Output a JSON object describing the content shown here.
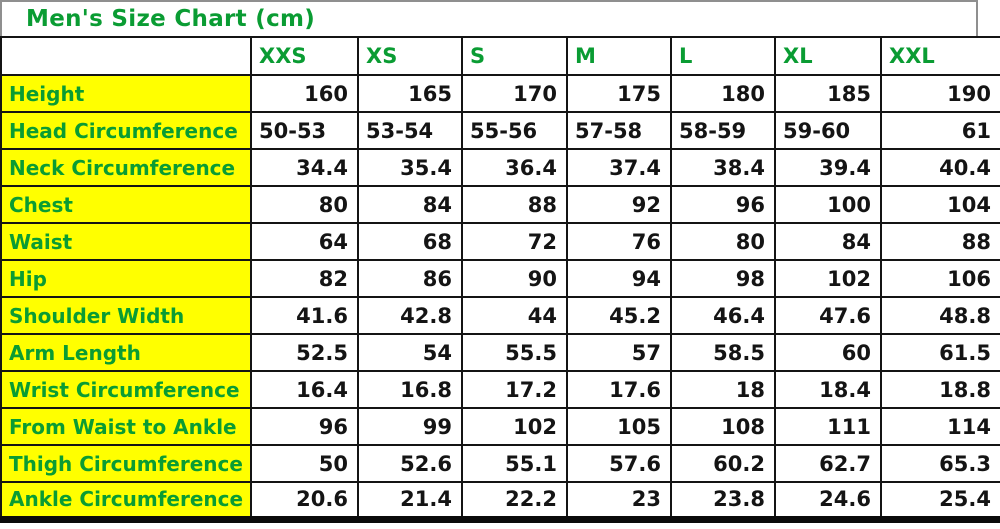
{
  "title": "Men's Size Chart (cm)",
  "colors": {
    "label_green": "#0a9c33",
    "row_yellow": "#ffff00",
    "grid_border": "#141414",
    "title_border_gray": "#8f8f8f",
    "value_text": "#141414"
  },
  "chart_data": {
    "type": "table",
    "title": "Men's Size Chart (cm)",
    "columns": [
      "",
      "XXS",
      "XS",
      "S",
      "M",
      "L",
      "XL",
      "XXL"
    ],
    "rows": [
      {
        "label": "Height",
        "values": [
          "160",
          "165",
          "170",
          "175",
          "180",
          "185",
          "190"
        ]
      },
      {
        "label": "Head Circumference",
        "values": [
          "50-53",
          "53-54",
          "55-56",
          "57-58",
          "58-59",
          "59-60",
          "61"
        ]
      },
      {
        "label": "Neck Circumference",
        "values": [
          "34.4",
          "35.4",
          "36.4",
          "37.4",
          "38.4",
          "39.4",
          "40.4"
        ]
      },
      {
        "label": "Chest",
        "values": [
          "80",
          "84",
          "88",
          "92",
          "96",
          "100",
          "104"
        ]
      },
      {
        "label": "Waist",
        "values": [
          "64",
          "68",
          "72",
          "76",
          "80",
          "84",
          "88"
        ]
      },
      {
        "label": "Hip",
        "values": [
          "82",
          "86",
          "90",
          "94",
          "98",
          "102",
          "106"
        ]
      },
      {
        "label": "Shoulder Width",
        "values": [
          "41.6",
          "42.8",
          "44",
          "45.2",
          "46.4",
          "47.6",
          "48.8"
        ]
      },
      {
        "label": "Arm Length",
        "values": [
          "52.5",
          "54",
          "55.5",
          "57",
          "58.5",
          "60",
          "61.5"
        ]
      },
      {
        "label": "Wrist Circumference",
        "values": [
          "16.4",
          "16.8",
          "17.2",
          "17.6",
          "18",
          "18.4",
          "18.8"
        ]
      },
      {
        "label": "From Waist to Ankle",
        "values": [
          "96",
          "99",
          "102",
          "105",
          "108",
          "111",
          "114"
        ]
      },
      {
        "label": "Thigh Circumference",
        "values": [
          "50",
          "52.6",
          "55.1",
          "57.6",
          "60.2",
          "62.7",
          "65.3"
        ]
      },
      {
        "label": "Ankle Circumference",
        "values": [
          "20.6",
          "21.4",
          "22.2",
          "23",
          "23.8",
          "24.6",
          "25.4"
        ]
      }
    ]
  }
}
